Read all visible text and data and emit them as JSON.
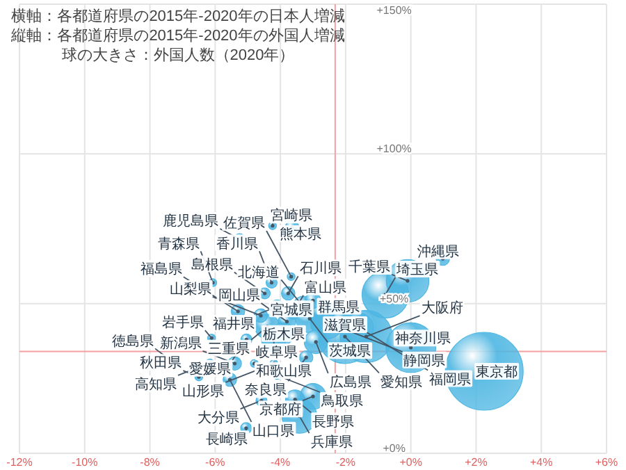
{
  "chart_data": {
    "type": "bubble",
    "annotations": [
      "横軸：各都道府県の2015年-2020年の日本人増減",
      "縦軸：各都道府県の2015年-2020年の外国人増減",
      "球の大きさ：外国人数（2020年）",
      {
        "text": "東京都",
        "x": 2.25,
        "y": 27.4
      },
      {
        "text": "愛知県",
        "x": -2.02,
        "y": 39
      },
      {
        "text": "大阪府",
        "x": -1.37,
        "y": 39
      },
      {
        "text": "神奈川県",
        "x": 0,
        "y": 35.3
      },
      {
        "text": "埼玉県",
        "x": -0.78,
        "y": 53
      },
      {
        "text": "千葉県",
        "x": -0.1,
        "y": 57.6
      },
      {
        "text": "兵庫県",
        "x": -3.42,
        "y": 12.5
      },
      {
        "text": "静岡県",
        "x": -2.57,
        "y": 43.7
      },
      {
        "text": "福岡県",
        "x": -1.59,
        "y": 42
      },
      {
        "text": "茨城県",
        "x": -3.1,
        "y": 45
      },
      {
        "text": "群馬県",
        "x": -2.7,
        "y": 47
      },
      {
        "text": "京都府",
        "x": -3.0,
        "y": 19
      },
      {
        "text": "岐阜県",
        "x": -4.2,
        "y": 38
      },
      {
        "text": "三重県",
        "x": -4.4,
        "y": 42.3
      },
      {
        "text": "広島県",
        "x": -2.91,
        "y": 37.2
      },
      {
        "text": "栃木県",
        "x": -3.9,
        "y": 40
      },
      {
        "text": "北海道",
        "x": -3.3,
        "y": 49
      },
      {
        "text": "長野県",
        "x": -3.55,
        "y": 18
      },
      {
        "text": "滋賀県",
        "x": -2.14,
        "y": 44
      },
      {
        "text": "岡山県",
        "x": -3.8,
        "y": 44
      },
      {
        "text": "宮城県",
        "x": -3.0,
        "y": 51
      },
      {
        "text": "新潟県",
        "x": -5.4,
        "y": 30
      },
      {
        "text": "奈良県",
        "x": -3.21,
        "y": 32
      },
      {
        "text": "富山県",
        "x": -3.6,
        "y": 47
      },
      {
        "text": "石川県",
        "x": -3.76,
        "y": 53.4
      },
      {
        "text": "山梨県",
        "x": -4.6,
        "y": 46
      },
      {
        "text": "福井県",
        "x": -4.1,
        "y": 49
      },
      {
        "text": "熊本県",
        "x": -3.64,
        "y": 75.5
      },
      {
        "text": "沖縄県",
        "x": 0.98,
        "y": 65
      },
      {
        "text": "山口県",
        "x": -5.55,
        "y": 24.6
      },
      {
        "text": "福島県",
        "x": -5.3,
        "y": 47.4
      },
      {
        "text": "香川県",
        "x": -4.27,
        "y": 57
      },
      {
        "text": "愛媛県",
        "x": -5.04,
        "y": 38
      },
      {
        "text": "鹿児島県",
        "x": -5.25,
        "y": 71.5
      },
      {
        "text": "大分県",
        "x": -4.58,
        "y": 17.6
      },
      {
        "text": "長崎県",
        "x": -5.05,
        "y": 8.4
      },
      {
        "text": "島根県",
        "x": -4.48,
        "y": 53.4
      },
      {
        "text": "宮崎県",
        "x": -4.24,
        "y": 76
      },
      {
        "text": "佐賀県",
        "x": -3.67,
        "y": 59
      },
      {
        "text": "岩手県",
        "x": -6.11,
        "y": 38.5
      },
      {
        "text": "和歌山県",
        "x": -4.8,
        "y": 30
      },
      {
        "text": "鳥取県",
        "x": -4.1,
        "y": 26
      },
      {
        "text": "徳島県",
        "x": -7.2,
        "y": 29.7
      },
      {
        "text": "高知県",
        "x": -6.16,
        "y": 30.2
      },
      {
        "text": "秋田県",
        "x": -6.5,
        "y": 25.5
      },
      {
        "text": "山形県",
        "x": -4.2,
        "y": 30
      },
      {
        "text": "青森県",
        "x": -6.07,
        "y": 57
      }
    ],
    "series": [
      {
        "color": "#4db6e2",
        "x": [
          2.25,
          -2.02,
          -1.37,
          0,
          -0.78,
          -0.1,
          -3.42,
          -2.57,
          -1.59,
          -3.1,
          -2.7,
          -3.0,
          -4.2,
          -4.4,
          -2.91,
          -3.9,
          -3.3,
          -3.55,
          -2.14,
          -3.8,
          -3.0,
          -5.4,
          -3.21,
          -3.6,
          -3.76,
          -4.6,
          -4.1,
          -3.64,
          0.98,
          -5.55,
          -5.3,
          -4.27,
          -5.04,
          -5.25,
          -4.58,
          -5.05,
          -4.48,
          -4.24,
          -3.67,
          -6.11,
          -4.8,
          -4.1,
          -7.2,
          -6.16,
          -6.5,
          -4.2,
          -6.07
        ],
        "values": [
          27.4,
          39,
          39,
          35.3,
          53,
          57.6,
          12.5,
          43.7,
          42,
          45,
          47,
          19,
          38,
          42.3,
          37.2,
          40,
          49,
          18,
          44,
          44,
          51,
          30,
          32,
          47,
          53.4,
          46,
          49,
          75.5,
          65,
          24.6,
          47.4,
          57,
          38,
          71.5,
          17.6,
          8.4,
          53.4,
          76,
          59,
          38.5,
          30,
          26,
          29.7,
          30.2,
          25.5,
          30,
          57
        ],
        "sizes": [
          1.0,
          0.48,
          0.45,
          0.41,
          0.36,
          0.3,
          0.2,
          0.18,
          0.14,
          0.13,
          0.11,
          0.11,
          0.1,
          0.1,
          0.09,
          0.08,
          0.07,
          0.06,
          0.06,
          0.05,
          0.04,
          0.03,
          0.03,
          0.03,
          0.03,
          0.03,
          0.03,
          0.03,
          0.03,
          0.03,
          0.03,
          0.02,
          0.02,
          0.02,
          0.02,
          0.02,
          0.02,
          0.01,
          0.01,
          0.01,
          0.01,
          0.01,
          0.01,
          0.01,
          0.01,
          0.01,
          0.01
        ]
      }
    ],
    "xlim": [
      -12,
      6
    ],
    "ylim": [
      0,
      150
    ],
    "xticks": [
      {
        "value": -12,
        "label": "-12%"
      },
      {
        "value": -10,
        "label": "-10%"
      },
      {
        "value": -8,
        "label": "-8%"
      },
      {
        "value": -6,
        "label": "-6%"
      },
      {
        "value": -4,
        "label": "-4%"
      },
      {
        "value": -2,
        "label": "-2%"
      },
      {
        "value": 0,
        "label": "+0%"
      },
      {
        "value": 2,
        "label": "+2%"
      },
      {
        "value": 4,
        "label": "+4%"
      },
      {
        "value": 6,
        "label": "+6%"
      }
    ],
    "yticks": [
      {
        "value": 0,
        "label": "+0%"
      },
      {
        "value": 50,
        "label": "+50%"
      },
      {
        "value": 100,
        "label": "+100%"
      },
      {
        "value": 150,
        "label": "+150%"
      }
    ],
    "grid": true,
    "ref_lines": [
      {
        "axis": "x",
        "value": -2.32,
        "color": "#f4a0a0"
      },
      {
        "axis": "y",
        "value": 34,
        "color": "#f4a0a0"
      }
    ]
  }
}
